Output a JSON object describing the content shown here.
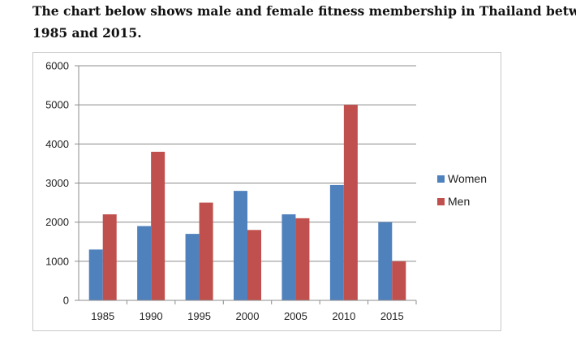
{
  "heading": {
    "line1": "The chart below shows male and female fitness membership in Thailand between",
    "line2": "1985 and 2015."
  },
  "chart_data": {
    "type": "bar",
    "title": "",
    "xlabel": "",
    "ylabel": "",
    "categories": [
      "1985",
      "1990",
      "1995",
      "2000",
      "2005",
      "2010",
      "2015"
    ],
    "series": [
      {
        "name": "Women",
        "color": "#4F81BD",
        "values": [
          1300,
          1900,
          1700,
          2800,
          2200,
          2950,
          2000
        ]
      },
      {
        "name": "Men",
        "color": "#C0504D",
        "values": [
          2200,
          3800,
          2500,
          1800,
          2100,
          5000,
          1000
        ]
      }
    ],
    "ylim": [
      0,
      6000
    ],
    "yticks": [
      0,
      1000,
      2000,
      3000,
      4000,
      5000,
      6000
    ],
    "grid": true,
    "legend": "right"
  }
}
